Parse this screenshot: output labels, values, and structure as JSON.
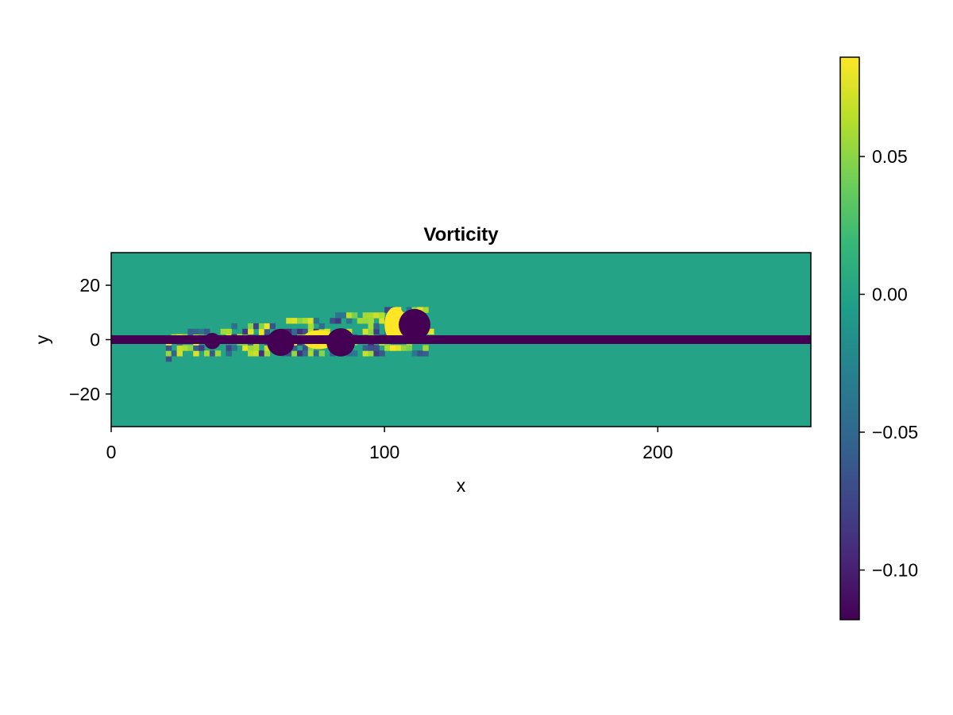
{
  "chart_data": {
    "type": "heatmap",
    "title": "Vorticity",
    "xlabel": "x",
    "ylabel": "y",
    "xlim": [
      0,
      256
    ],
    "ylim": [
      -32,
      32
    ],
    "x_ticks": [
      0,
      100,
      200
    ],
    "x_tick_labels": [
      "0",
      "100",
      "200"
    ],
    "y_ticks": [
      -20,
      0,
      20
    ],
    "y_tick_labels": [
      "−20",
      "0",
      "20"
    ],
    "colormap": "viridis",
    "colormap_stops": [
      "#440154",
      "#482878",
      "#3e4989",
      "#31688e",
      "#26828e",
      "#1f9e89",
      "#35b779",
      "#6ece58",
      "#b5de2b",
      "#fde725"
    ],
    "background_value": 0.0,
    "colorbar": {
      "range": [
        -0.118,
        0.086
      ],
      "ticks": [
        0.05,
        0.0,
        -0.05,
        -0.1
      ],
      "tick_labels": [
        "0.05",
        "0.00",
        "−0.05",
        "−0.10"
      ]
    },
    "features": {
      "wake_band": {
        "x_start": 0,
        "x_end": 256,
        "y_center": 0,
        "half_width": 1.6,
        "value": -0.118
      },
      "vortices": [
        {
          "x": 111,
          "y": 5.5,
          "r": 5.8,
          "value": -0.118
        },
        {
          "x": 84,
          "y": -1.0,
          "r": 5.2,
          "value": -0.118
        },
        {
          "x": 62,
          "y": -1.0,
          "r": 5.0,
          "value": -0.118
        },
        {
          "x": 37,
          "y": -0.5,
          "r": 3.0,
          "value": -0.118
        }
      ],
      "positive_lobes": [
        {
          "x": 104,
          "y": 5.5,
          "rx": 4.0,
          "ry": 6.5,
          "value": 0.086
        },
        {
          "x": 76,
          "y": 0.0,
          "rx": 6.0,
          "ry": 3.5,
          "value": 0.086
        }
      ],
      "noisy_region": {
        "x_start": 20,
        "x_end": 118,
        "y_min": -8,
        "y_max": 12
      }
    }
  }
}
